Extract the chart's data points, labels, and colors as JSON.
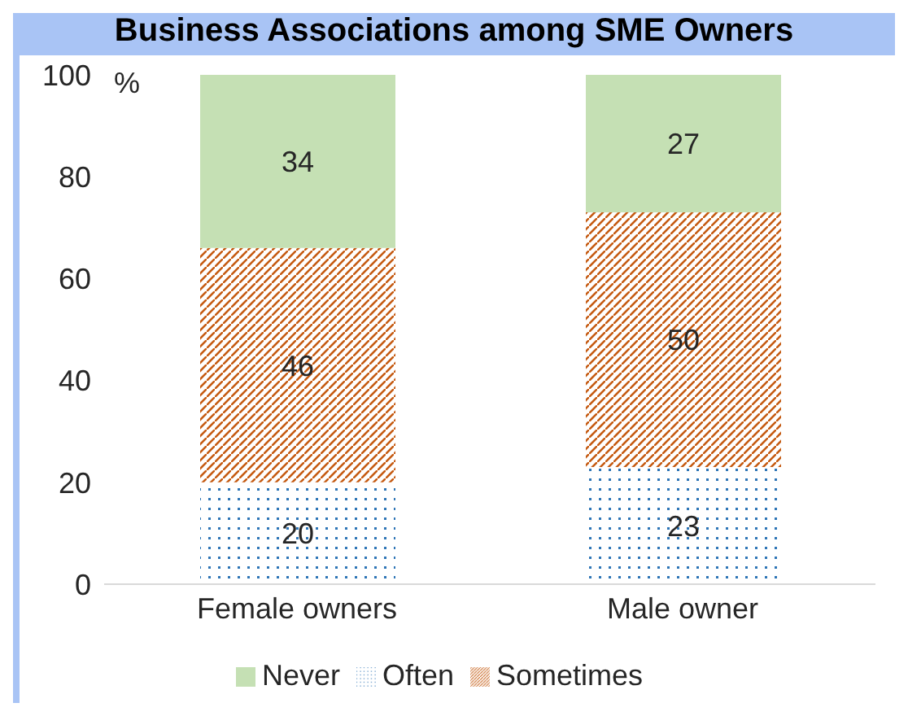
{
  "chart_data": {
    "type": "bar",
    "title": "Business Associations among SME Owners",
    "ylabel": "%",
    "categories": [
      "Female owners",
      "Male owner"
    ],
    "series": [
      {
        "name": "Often",
        "color": "#2e75b6",
        "values": [
          20,
          23
        ]
      },
      {
        "name": "Sometimes",
        "color": "#c55a11",
        "values": [
          46,
          50
        ]
      },
      {
        "name": "Never",
        "color": "#c5e0b4",
        "values": [
          34,
          27
        ]
      }
    ],
    "stacked": true,
    "ylim": [
      0,
      100
    ],
    "yticks": [
      0,
      20,
      40,
      60,
      80,
      100
    ],
    "grid": false,
    "legend": "bottom",
    "data_labels": true
  }
}
